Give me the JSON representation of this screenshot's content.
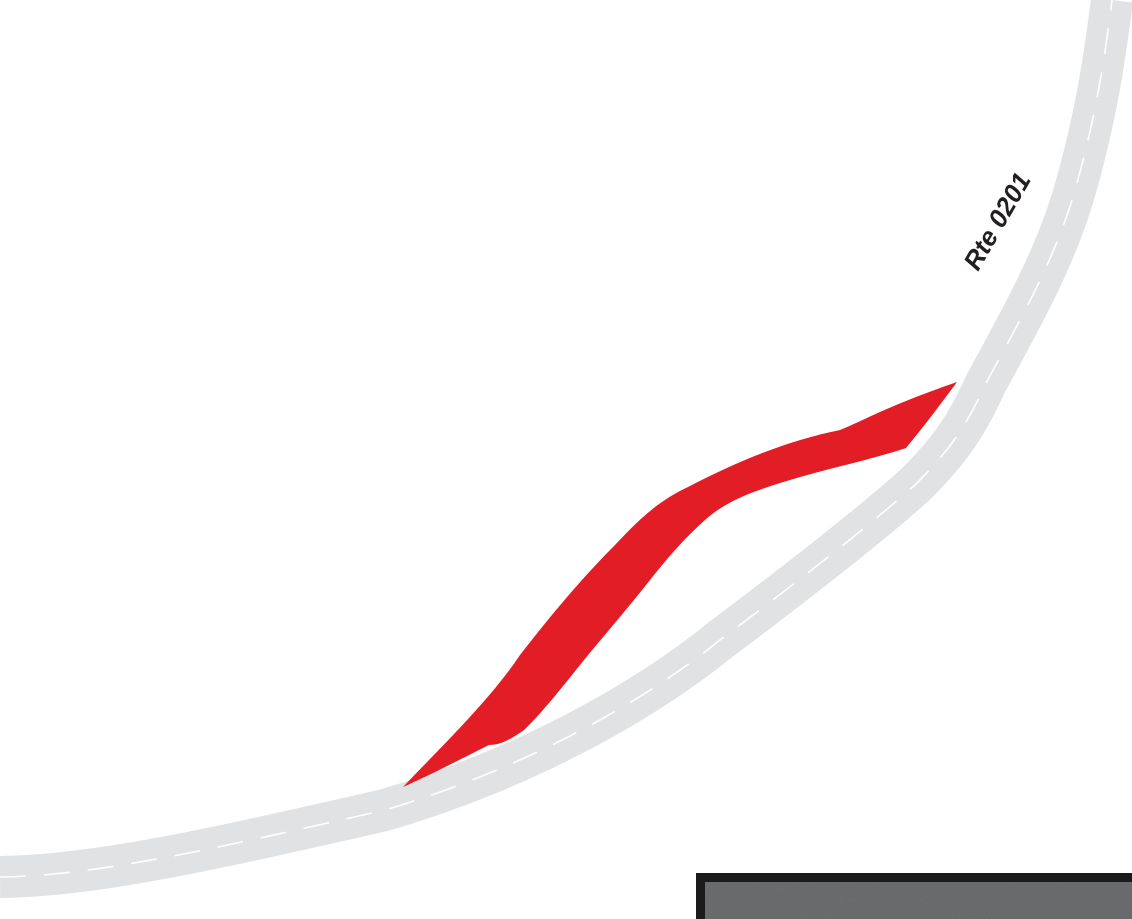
{
  "map": {
    "road_label": "Rte 0201",
    "colors": {
      "background": "#ffffff",
      "road": "#e1e2e3",
      "lane_dash": "#ffffff",
      "new_route": "#e21d25",
      "label": "#231f20",
      "photo_frame": "#1b1b1b",
      "photo_asphalt": "#6e6f70"
    }
  }
}
